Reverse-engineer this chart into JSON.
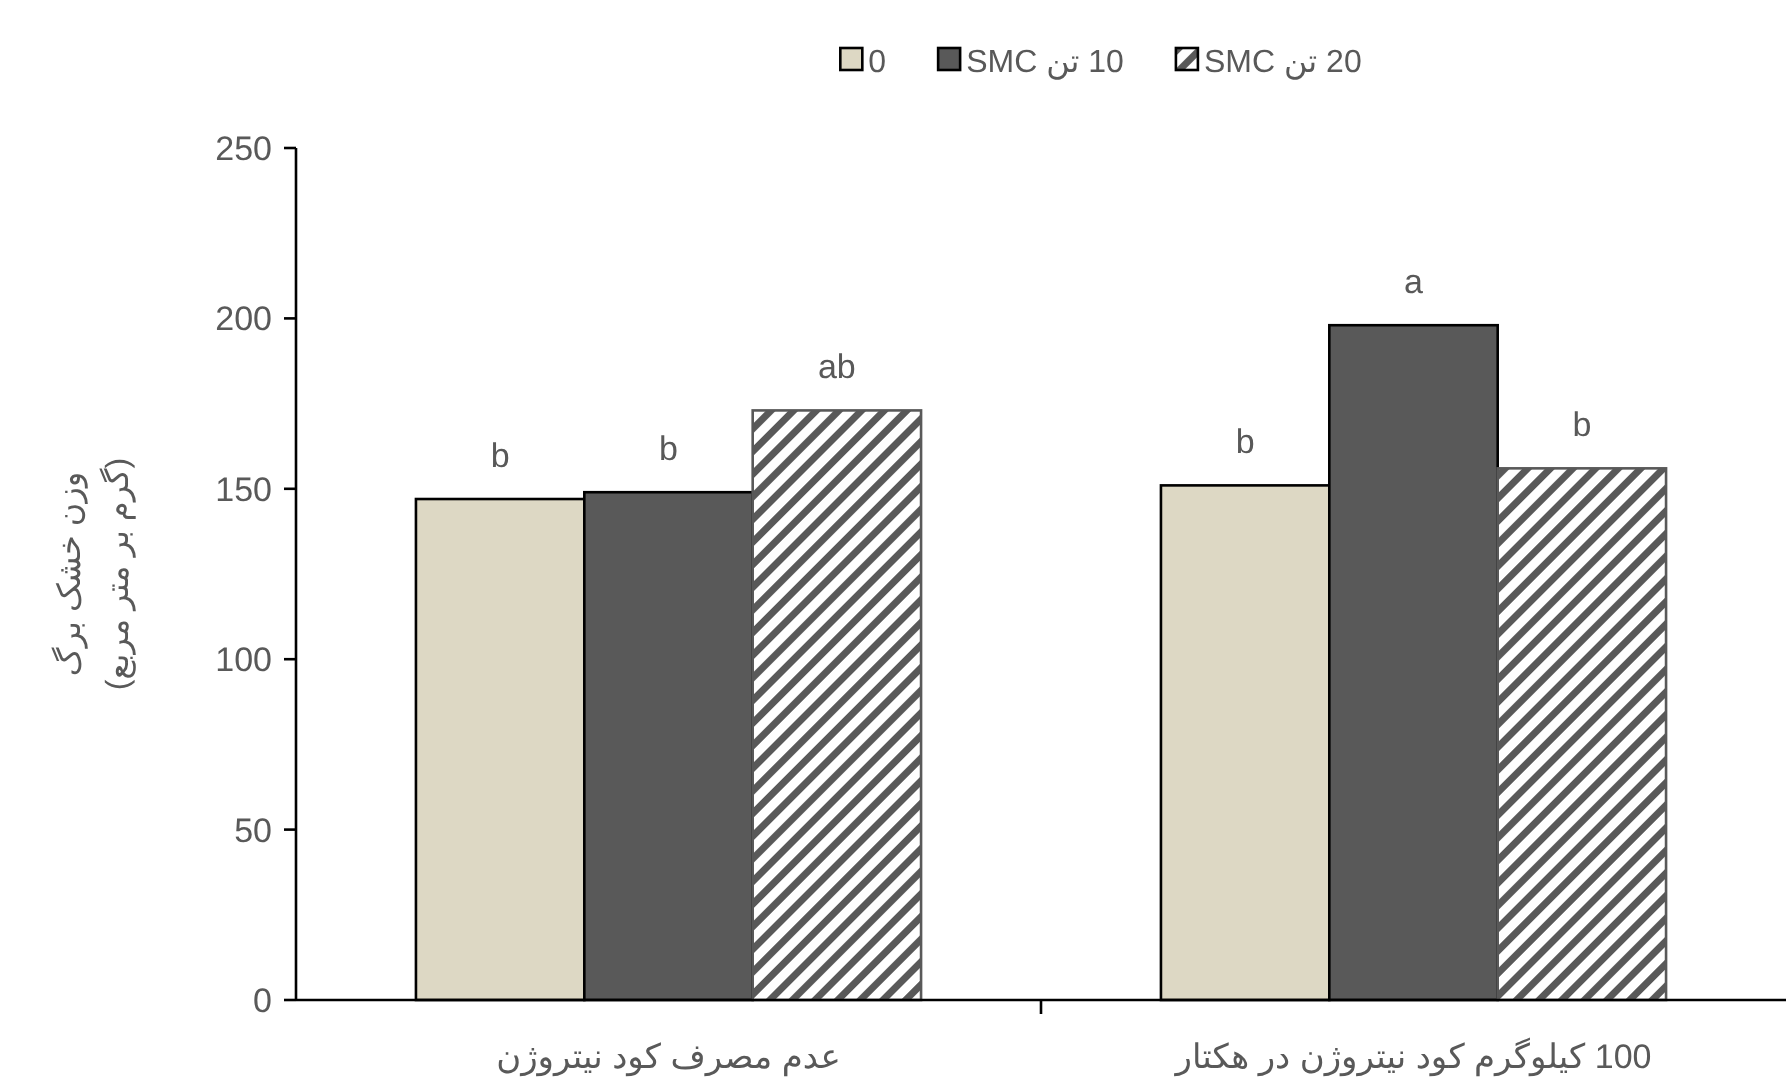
{
  "chart_data": {
    "type": "bar",
    "ylabel": "وزن خشک برگ\n(گرم بر متر مربع)",
    "categories": [
      "عدم مصرف کود نیتروژن",
      "100 کیلوگرم کود نیتروژن در هکتار"
    ],
    "series": [
      {
        "name": "0",
        "color": "#ddd8c4",
        "values": [
          147,
          151
        ],
        "value_labels": [
          "b",
          "b"
        ]
      },
      {
        "name": "10 تن SMC",
        "color": "#595959",
        "values": [
          149,
          198
        ],
        "value_labels": [
          "b",
          "a"
        ]
      },
      {
        "name": "20 تن SMC",
        "color": "#595959",
        "values": [
          173,
          156
        ],
        "value_labels": [
          "ab",
          "b"
        ]
      }
    ],
    "ylim": [
      0,
      250
    ],
    "yticks": [
      0,
      50,
      100,
      150,
      200,
      250
    ],
    "grid": false,
    "legend": "top"
  }
}
